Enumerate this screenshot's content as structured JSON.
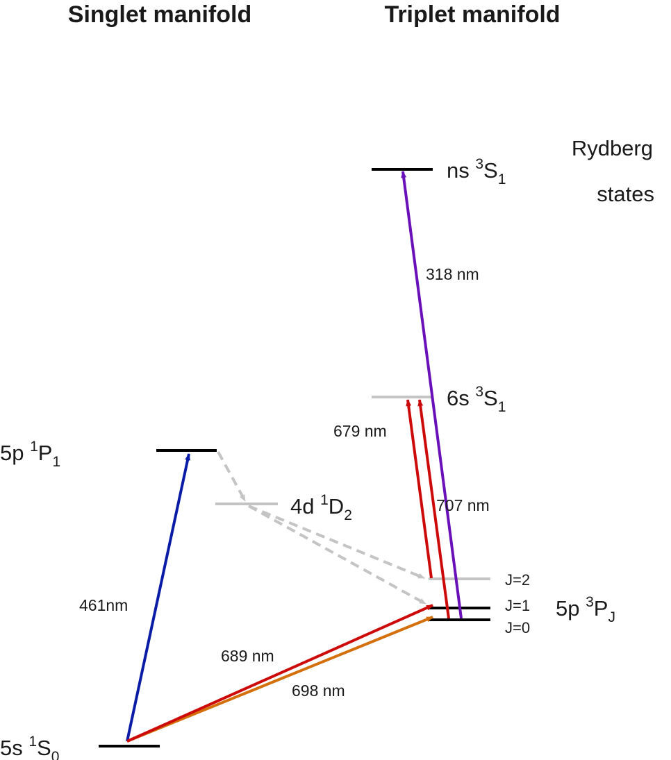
{
  "headings": {
    "singlet": "Singlet manifold",
    "triplet": "Triplet manifold"
  },
  "rydberg_caption": {
    "line1": "Rydberg",
    "line2": "states"
  },
  "states": {
    "s0": {
      "prefix": "5s ",
      "mult": "1",
      "letter": "S",
      "j": "0"
    },
    "p1": {
      "prefix": "5p ",
      "mult": "1",
      "letter": "P",
      "j": "1"
    },
    "d2": {
      "prefix": "4d ",
      "mult": "1",
      "letter": "D",
      "j": "2"
    },
    "pj": {
      "prefix": "5p ",
      "mult": "3",
      "letter": "P",
      "j": "J"
    },
    "s6": {
      "prefix": "6s ",
      "mult": "3",
      "letter": "S",
      "j": "1"
    },
    "ns": {
      "prefix": "ns ",
      "mult": "3",
      "letter": "S",
      "j": "1"
    }
  },
  "sublevels": {
    "j2": "J=2",
    "j1": "J=1",
    "j0": "J=0"
  },
  "transitions": {
    "blue": "461nm",
    "red_intercomb": "689 nm",
    "orange_clock": "698 nm",
    "red_679": "679 nm",
    "red_707": "707 nm",
    "purple": "318 nm"
  },
  "colors": {
    "level": "#000000",
    "faded_level": "#c4c4c4",
    "decay": "#c4c4c4",
    "blue_461": "#0a1ca6",
    "red": "#cc0a0a",
    "orange_698": "#d4700c",
    "purple_318": "#6a10b8"
  }
}
